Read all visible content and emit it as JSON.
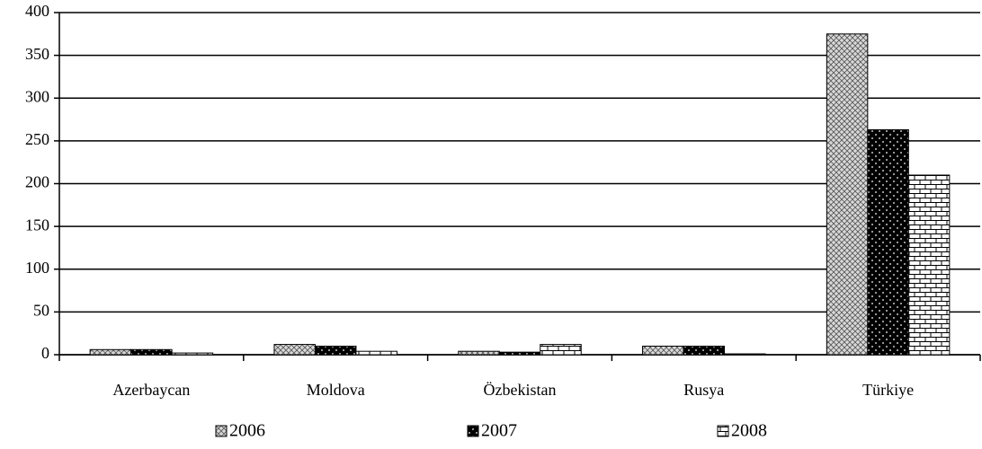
{
  "chart_data": {
    "type": "bar",
    "categories": [
      "Azerbaycan",
      "Moldova",
      "Özbekistan",
      "Rusya",
      "Türkiye"
    ],
    "series": [
      {
        "name": "2006",
        "color": "#c8c8c8",
        "values": [
          6,
          12,
          4,
          10,
          375
        ]
      },
      {
        "name": "2007",
        "color": "#000000",
        "values": [
          6,
          10,
          3,
          10,
          263
        ]
      },
      {
        "name": "2008",
        "color": "#ffffff",
        "values": [
          2,
          4,
          12,
          1,
          210
        ]
      }
    ],
    "ylim": [
      0,
      400
    ],
    "yticks": [
      0,
      50,
      100,
      150,
      200,
      250,
      300,
      350,
      400
    ],
    "grid": true
  }
}
